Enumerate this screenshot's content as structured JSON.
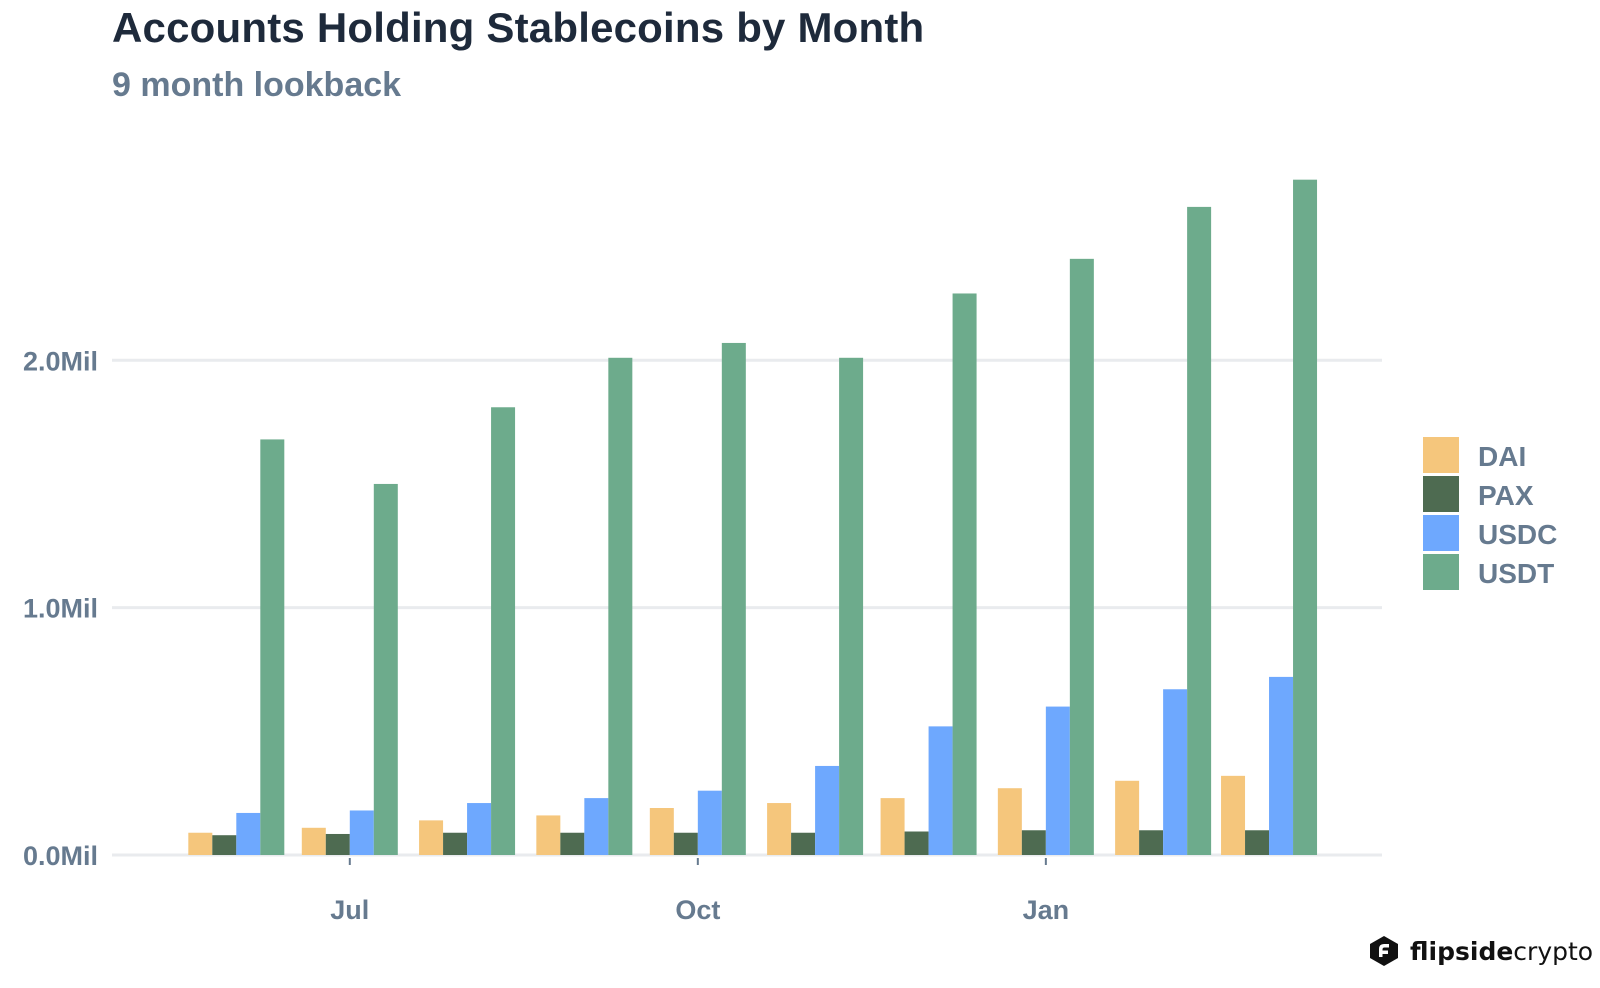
{
  "title": "Accounts Holding Stablecoins by Month",
  "subtitle": "9 month lookback",
  "brand": {
    "part1": "flipside",
    "part2": "crypto"
  },
  "chart_data": {
    "type": "bar",
    "months": [
      "2020-06",
      "2020-07",
      "2020-08",
      "2020-09",
      "2020-10",
      "2020-11",
      "2020-12",
      "2021-01",
      "2021-02",
      "2021-03"
    ],
    "xticks": [
      {
        "label": "Jul",
        "at": "2020-07-01"
      },
      {
        "label": "Oct",
        "at": "2020-10-01"
      },
      {
        "label": "Jan",
        "at": "2021-01-01"
      }
    ],
    "yticks": [
      {
        "value": 0,
        "label": "0.0Mil"
      },
      {
        "value": 1,
        "label": "1.0Mil"
      },
      {
        "value": 2,
        "label": "2.0Mil"
      }
    ],
    "ylim": [
      0,
      2.85
    ],
    "y_unit": "Mil",
    "grid": "horizontal",
    "legend_position": "right",
    "series": [
      {
        "name": "DAI",
        "color": "#f5c67c",
        "values": [
          0.09,
          0.11,
          0.14,
          0.16,
          0.19,
          0.21,
          0.23,
          0.27,
          0.3,
          0.32
        ]
      },
      {
        "name": "PAX",
        "color": "#4e6b51",
        "values": [
          0.08,
          0.085,
          0.09,
          0.09,
          0.09,
          0.09,
          0.095,
          0.1,
          0.1,
          0.1
        ]
      },
      {
        "name": "USDC",
        "color": "#6ea8fe",
        "values": [
          0.17,
          0.18,
          0.21,
          0.23,
          0.26,
          0.36,
          0.52,
          0.6,
          0.67,
          0.72
        ]
      },
      {
        "name": "USDT",
        "color": "#6dab8c",
        "values": [
          1.68,
          1.5,
          1.81,
          2.01,
          2.07,
          2.01,
          2.27,
          2.41,
          2.62,
          2.73
        ]
      }
    ]
  }
}
